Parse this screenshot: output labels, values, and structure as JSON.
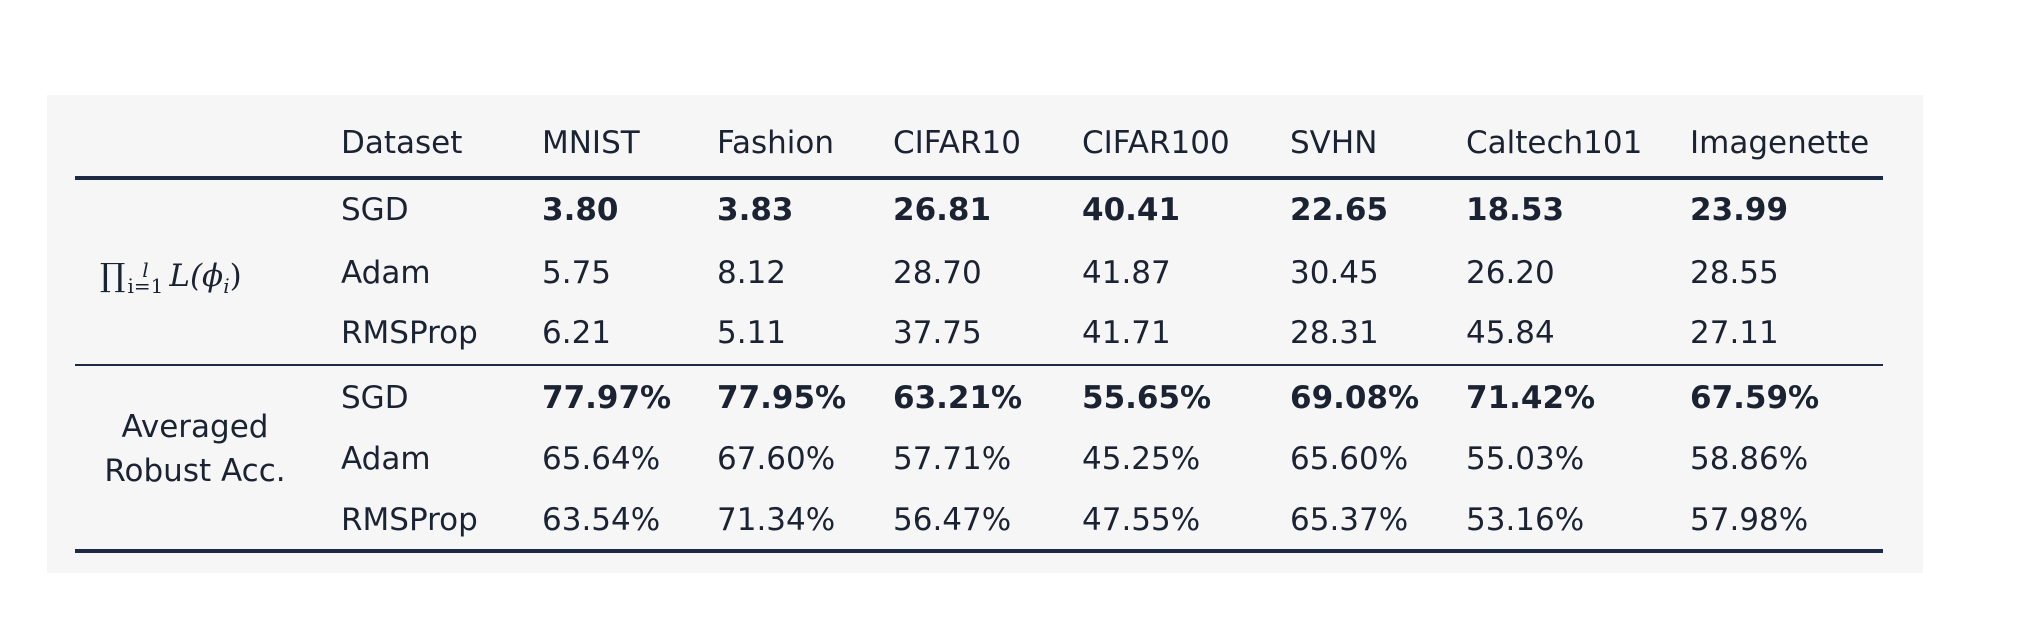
{
  "table": {
    "header": [
      "Dataset",
      "MNIST",
      "Fashion",
      "CIFAR10",
      "CIFAR100",
      "SVHN",
      "Caltech101",
      "Imagenette"
    ],
    "groups": [
      {
        "label_math": {
          "prod": "∏",
          "sup": "l",
          "sub": "i=1",
          "func": "L(",
          "var": "ϕ",
          "var_sub": "i",
          "close": ")"
        },
        "rows": [
          {
            "optimizer": "SGD",
            "values": [
              "3.80",
              "3.83",
              "26.81",
              "40.41",
              "22.65",
              "18.53",
              "23.99"
            ],
            "bold": true
          },
          {
            "optimizer": "Adam",
            "values": [
              "5.75",
              "8.12",
              "28.70",
              "41.87",
              "30.45",
              "26.20",
              "28.55"
            ],
            "bold": false
          },
          {
            "optimizer": "RMSProp",
            "values": [
              "6.21",
              "5.11",
              "37.75",
              "41.71",
              "28.31",
              "45.84",
              "27.11"
            ],
            "bold": false
          }
        ]
      },
      {
        "label_lines": [
          "Averaged",
          "Robust Acc."
        ],
        "rows": [
          {
            "optimizer": "SGD",
            "values": [
              "77.97%",
              "77.95%",
              "63.21%",
              "55.65%",
              "69.08%",
              "71.42%",
              "67.59%"
            ],
            "bold": true
          },
          {
            "optimizer": "Adam",
            "values": [
              "65.64%",
              "67.60%",
              "57.71%",
              "45.25%",
              "65.60%",
              "55.03%",
              "58.86%"
            ],
            "bold": false
          },
          {
            "optimizer": "RMSProp",
            "values": [
              "63.54%",
              "71.34%",
              "56.47%",
              "47.55%",
              "65.37%",
              "53.16%",
              "57.98%"
            ],
            "bold": false
          }
        ]
      }
    ]
  }
}
